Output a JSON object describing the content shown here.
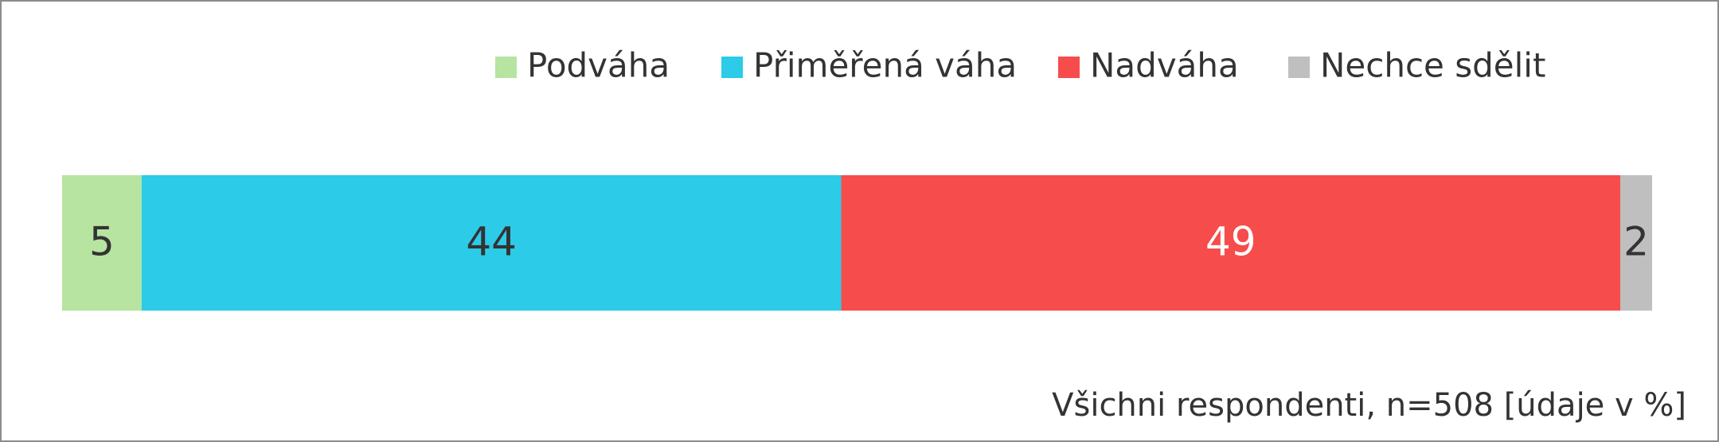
{
  "chart_data": {
    "type": "stacked-bar-horizontal",
    "categories": [
      null
    ],
    "series": [
      {
        "name": "Podváha",
        "color": "#b7e4a0",
        "label_color": "#333333",
        "values": [
          5
        ]
      },
      {
        "name": "Přiměřená váha",
        "color": "#2ccbe8",
        "label_color": "#333333",
        "values": [
          44
        ]
      },
      {
        "name": "Nadváha",
        "color": "#f74c4c",
        "label_color": "#ffffff",
        "values": [
          49
        ]
      },
      {
        "name": "Nechce sdělit",
        "color": "#bfbfbf",
        "label_color": "#333333",
        "values": [
          2
        ]
      }
    ],
    "xlim": [
      0,
      100
    ],
    "legend": "top",
    "note": "Všichni respondenti, n=508 [údaje v %]"
  }
}
